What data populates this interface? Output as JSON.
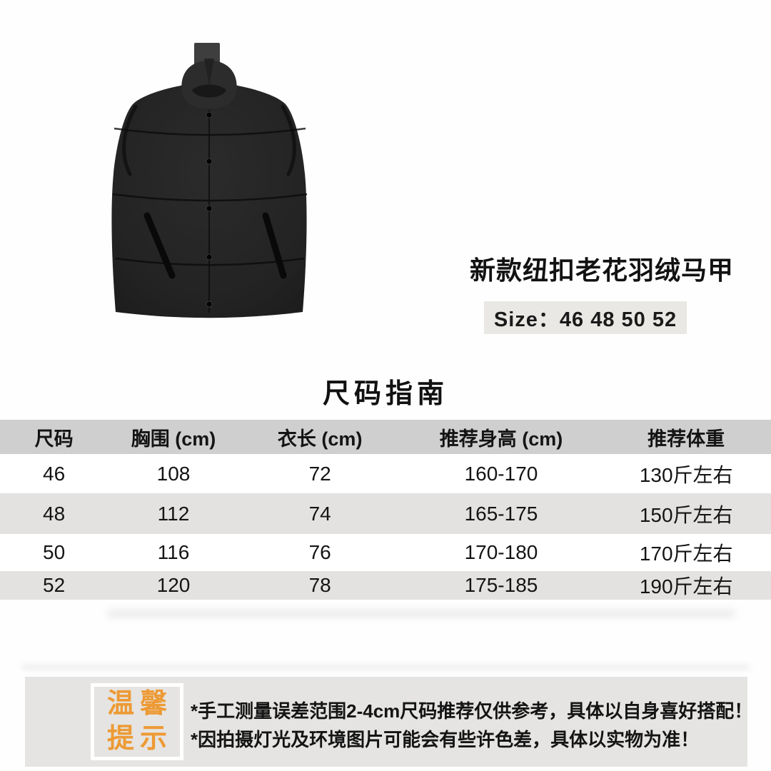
{
  "product": {
    "title": "新款纽扣老花羽绒马甲",
    "size_label": "Size：46 48 50 52",
    "image_alt": "black-puffer-vest"
  },
  "size_guide": {
    "heading": "尺码指南",
    "table": {
      "headers": [
        "尺码",
        "胸围 (cm)",
        "衣长 (cm)",
        "推荐身高 (cm)",
        "推荐体重"
      ],
      "rows": [
        [
          "46",
          "108",
          "72",
          "160-170",
          "130斤左右"
        ],
        [
          "48",
          "112",
          "74",
          "165-175",
          "150斤左右"
        ],
        [
          "50",
          "116",
          "76",
          "170-180",
          "170斤左右"
        ],
        [
          "52",
          "120",
          "78",
          "175-185",
          "190斤左右"
        ]
      ]
    }
  },
  "tips": {
    "badge_line1": "温馨",
    "badge_line2": "提示",
    "lines": [
      "*手工测量误差范围2-4cm尺码推荐仅供参考，具体以自身喜好搭配！",
      "*因拍摄灯光及环境图片可能会有些许色差，具体以实物为准！"
    ]
  },
  "colors": {
    "accent_orange": "#ED9A35",
    "table_header_gray": "#cfcfcf",
    "table_row_gray": "#e3e2e0",
    "tips_band_gray": "#e5e4e2",
    "size_box_gray": "#e9e8e4",
    "vest_black": "#232323"
  }
}
